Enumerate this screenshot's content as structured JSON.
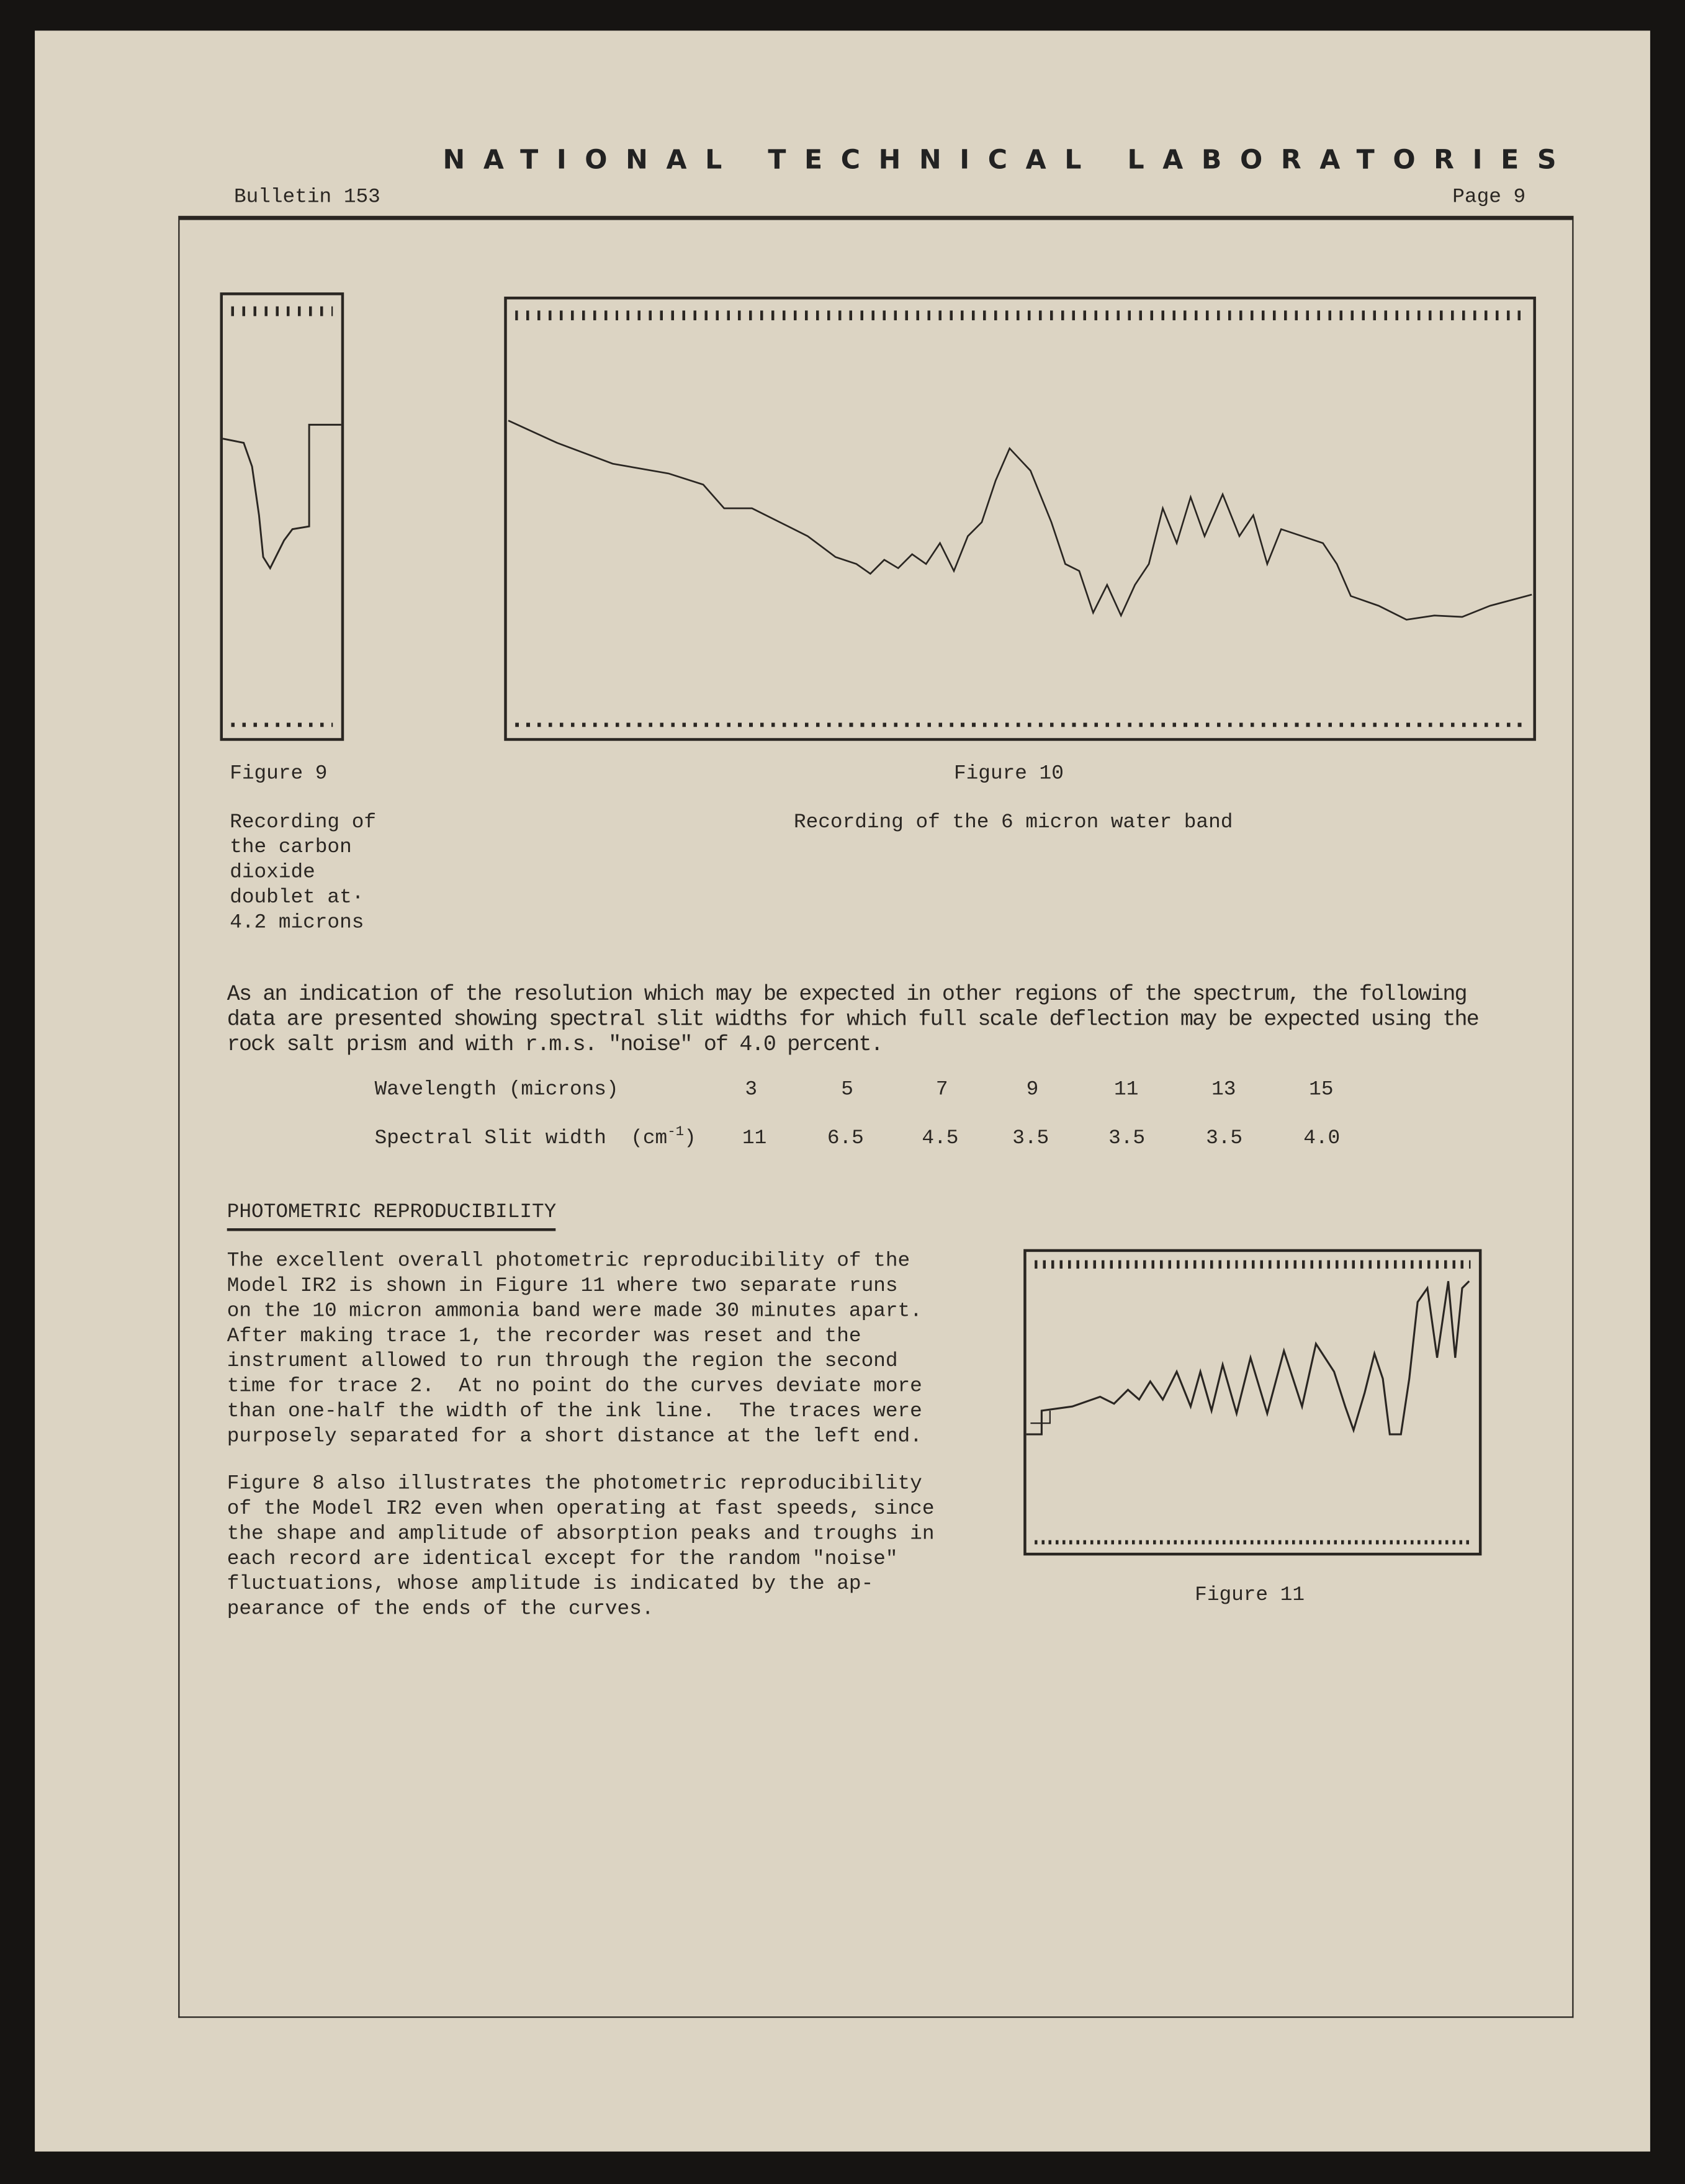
{
  "header": {
    "org": "NATIONAL TECHNICAL LABORATORIES",
    "bulletin": "Bulletin 153",
    "page": "Page 9"
  },
  "figures": {
    "fig9": {
      "label": "Figure 9",
      "caption": [
        "Recording of",
        "the carbon",
        "dioxide",
        "doublet at·",
        "4.2 microns"
      ]
    },
    "fig10": {
      "label": "Figure 10",
      "caption": "Recording of the 6 micron water band"
    },
    "fig11": {
      "label": "Figure 11"
    }
  },
  "intro": [
    "As an indication of the resolution which may be expected in other regions of the spectrum, the following",
    "data are presented showing spectral slit widths for which full scale deflection may be expected using the",
    "rock salt prism and with r.m.s. \"noise\" of 4.0 percent."
  ],
  "table": {
    "row1_label": "Wavelength (microns)",
    "row1": [
      "3",
      "5",
      "7",
      "9",
      "11",
      "13",
      "15"
    ],
    "row2_label": "Spectral Slit width  (cm",
    "row2_sup": "-1",
    "row2_close": ")",
    "row2": [
      "11",
      "6.5",
      "4.5",
      "3.5",
      "3.5",
      "3.5",
      "4.0"
    ]
  },
  "section_title": "PHOTOMETRIC REPRODUCIBILITY",
  "para1": [
    "The excellent overall photometric reproducibility of the",
    "Model IR2 is shown in Figure 11 where two separate runs",
    "on the 10 micron ammonia band were made 30 minutes apart.",
    "After making trace 1, the recorder was reset and the",
    "instrument allowed to run through the region the second",
    "time for trace 2.  At no point do the curves deviate more",
    "than one-half the width of the ink line.  The traces were",
    "purposely separated for a short distance at the left end."
  ],
  "para2": [
    "Figure 8 also illustrates the photometric reproducibility",
    "of the Model IR2 even when operating at fast speeds, since",
    "the shape and amplitude of absorption peaks and troughs in",
    "each record are identical except for the random \"noise\"",
    "fluctuations, whose amplitude is indicated by the ap-",
    "pearance of the ends of the curves."
  ],
  "colors": {
    "paper": "#dcd4c3",
    "ink": "#2a2622",
    "background": "#161412"
  }
}
